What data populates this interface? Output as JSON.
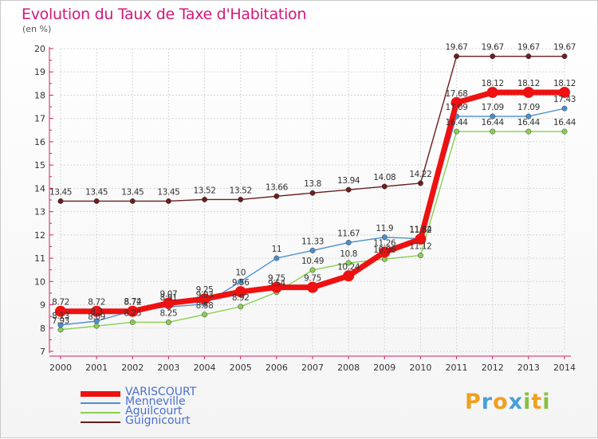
{
  "title": "Evolution du Taux de Taxe d'Habitation",
  "unit": "(en %)",
  "logo": "Proxiti",
  "chart_data": {
    "type": "line",
    "title": "Evolution du Taux de Taxe d'Habitation",
    "ylabel": "(en %)",
    "xlabel": "",
    "ylim": [
      7,
      20
    ],
    "yticks": [
      7,
      8,
      9,
      10,
      11,
      12,
      13,
      14,
      15,
      16,
      17,
      18,
      19,
      20
    ],
    "grid": true,
    "legend_position": "bottom-left",
    "x": [
      "2000",
      "2001",
      "2002",
      "2003",
      "2004",
      "2005",
      "2006",
      "2007",
      "2008",
      "2009",
      "2010",
      "2011",
      "2012",
      "2013",
      "2014"
    ],
    "series": [
      {
        "name": "Guignicourt",
        "color": "#6b1e1e",
        "values": [
          13.45,
          13.45,
          13.45,
          13.45,
          13.52,
          13.52,
          13.66,
          13.8,
          13.94,
          14.08,
          14.22,
          19.67,
          19.67,
          19.67,
          19.67
        ],
        "labels": [
          "13.45",
          "13.45",
          "13.45",
          "13.45",
          "13.52",
          "13.52",
          "13.66",
          "13.8",
          "13.94",
          "14.08",
          "14.22",
          "19.67",
          "19.67",
          "19.67",
          "19.67"
        ]
      },
      {
        "name": "Aguilcourt",
        "color": "#88d050",
        "values": [
          7.93,
          8.09,
          8.25,
          8.25,
          8.58,
          8.92,
          9.54,
          10.49,
          10.8,
          10.96,
          11.12,
          16.44,
          16.44,
          16.44,
          16.44
        ],
        "labels": [
          "7.93",
          "8.09",
          "8.25",
          "8.25",
          "8.58",
          "8.92",
          "9.54",
          "10.49",
          "10.8",
          "10.96",
          "11.12",
          "16.44",
          "16.44",
          "16.44",
          "16.44"
        ]
      },
      {
        "name": "Menneville",
        "color": "#4a8fd0",
        "values": [
          8.13,
          8.3,
          8.74,
          8.91,
          9.03,
          10,
          11,
          11.33,
          11.67,
          11.9,
          11.84,
          17.09,
          17.09,
          17.09,
          17.43
        ],
        "labels": [
          "8.13",
          "8.3",
          "8.74",
          "8.91",
          "9.03",
          "10",
          "11",
          "11.33",
          "11.67",
          "11.9",
          "11.84",
          "17.09",
          "17.09",
          "17.09",
          "17.43"
        ]
      },
      {
        "name": "VARISCOURT",
        "color": "#ee1111",
        "values": [
          8.72,
          8.72,
          8.72,
          9.07,
          9.25,
          9.56,
          9.75,
          9.75,
          10.24,
          11.26,
          11.82,
          17.68,
          18.12,
          18.12,
          18.12
        ],
        "labels": [
          "8.72",
          "8.72",
          "8.72",
          "9.07",
          "9.25",
          "9.56",
          "9.75",
          "9.75",
          "10.24",
          "11.26",
          "11.82",
          "17.68",
          "18.12",
          "18.12",
          "18.12"
        ]
      }
    ]
  },
  "legend": [
    {
      "name": "VARISCOURT",
      "color": "#ee1111"
    },
    {
      "name": "Menneville",
      "color": "#4a8fd0"
    },
    {
      "name": "Aguilcourt",
      "color": "#88d050"
    },
    {
      "name": "Guignicourt",
      "color": "#6b1e1e"
    }
  ],
  "logo_colors": [
    "#f0a020",
    "#4aa0d8",
    "#f0a020",
    "#4aa0d8",
    "#88c040",
    "#f0a020",
    "#88c040"
  ]
}
